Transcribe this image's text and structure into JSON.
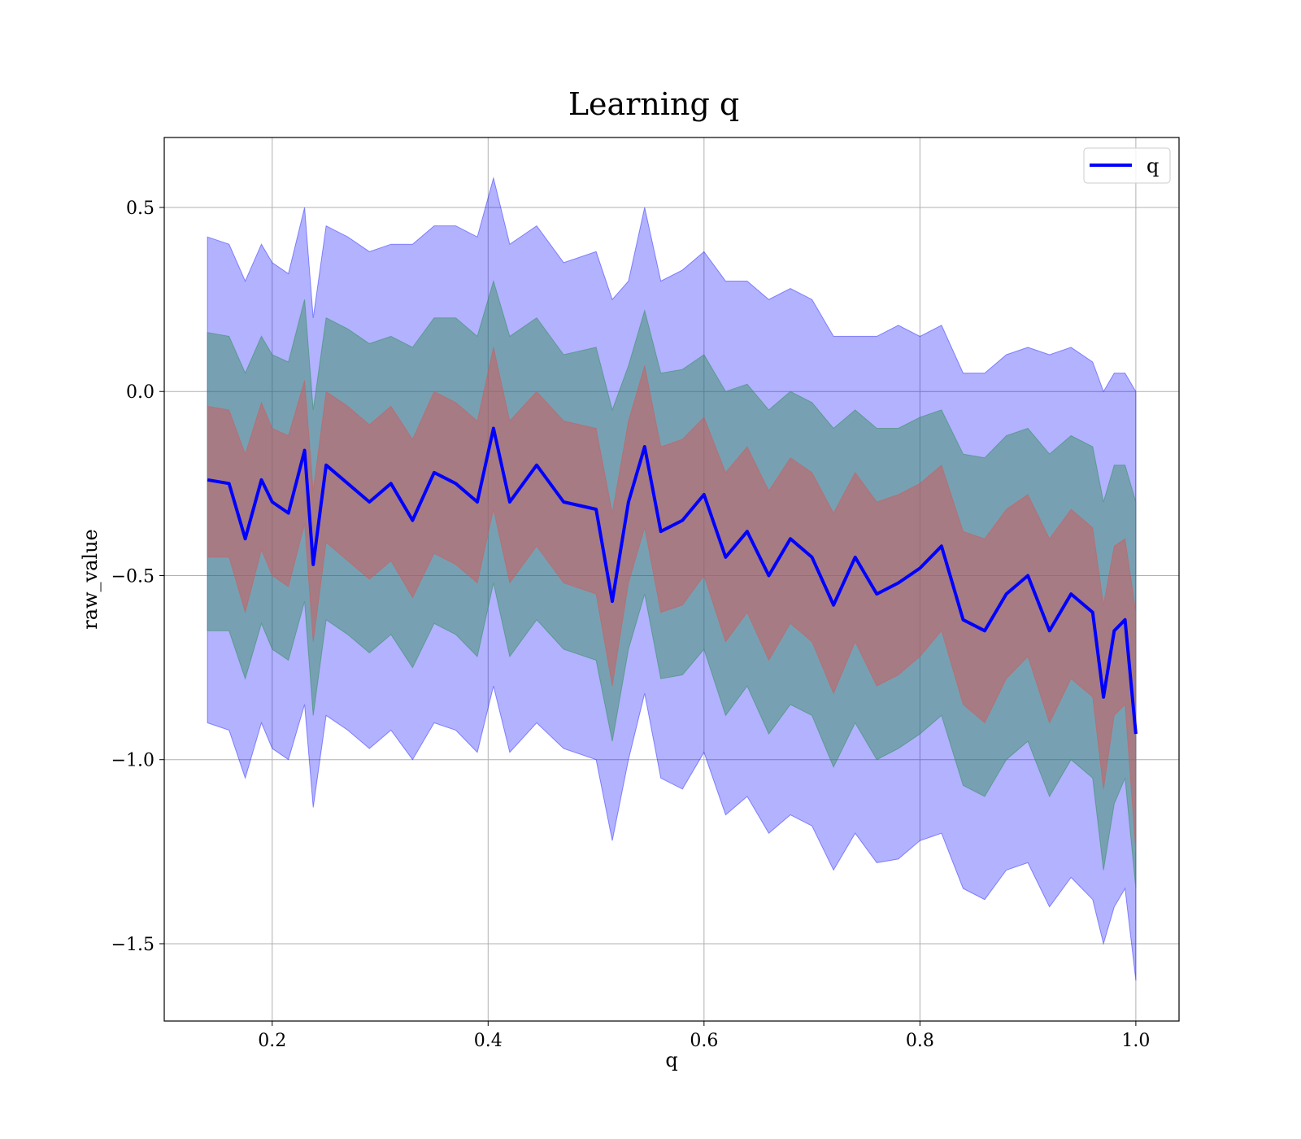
{
  "chart_data": {
    "type": "line",
    "title": "Learning q",
    "xlabel": "q",
    "ylabel": "raw_value",
    "xlim": [
      0.1,
      1.04
    ],
    "ylim": [
      -1.71,
      0.69
    ],
    "xticks": [
      0.2,
      0.4,
      0.6,
      0.8,
      1.0
    ],
    "xtick_labels": [
      "0.2",
      "0.4",
      "0.6",
      "0.8",
      "1.0"
    ],
    "yticks": [
      0.5,
      0.0,
      -0.5,
      -1.0,
      -1.5
    ],
    "ytick_labels": [
      "0.5",
      "0.0",
      "−0.5",
      "−1.0",
      "−1.5"
    ],
    "grid": true,
    "legend": {
      "position": "top-right",
      "entries": [
        "q"
      ]
    },
    "colors": {
      "mean_line": "#0000ff",
      "band_outer": "#0000ff",
      "band_middle": "#2e8b57",
      "band_inner": "#cd5c5c"
    },
    "series": [
      {
        "name": "q",
        "x": [
          0.14,
          0.16,
          0.175,
          0.19,
          0.2,
          0.215,
          0.23,
          0.238,
          0.25,
          0.27,
          0.29,
          0.31,
          0.33,
          0.35,
          0.37,
          0.39,
          0.405,
          0.42,
          0.445,
          0.47,
          0.5,
          0.515,
          0.53,
          0.545,
          0.56,
          0.58,
          0.6,
          0.62,
          0.64,
          0.66,
          0.68,
          0.7,
          0.72,
          0.74,
          0.76,
          0.78,
          0.8,
          0.82,
          0.84,
          0.86,
          0.88,
          0.9,
          0.92,
          0.94,
          0.96,
          0.97,
          0.98,
          0.99,
          1.0
        ],
        "values": [
          -0.24,
          -0.25,
          -0.4,
          -0.24,
          -0.3,
          -0.33,
          -0.16,
          -0.47,
          -0.2,
          -0.25,
          -0.3,
          -0.25,
          -0.35,
          -0.22,
          -0.25,
          -0.3,
          -0.1,
          -0.3,
          -0.2,
          -0.3,
          -0.32,
          -0.57,
          -0.3,
          -0.15,
          -0.38,
          -0.35,
          -0.28,
          -0.45,
          -0.38,
          -0.5,
          -0.4,
          -0.45,
          -0.58,
          -0.45,
          -0.55,
          -0.52,
          -0.48,
          -0.42,
          -0.62,
          -0.65,
          -0.55,
          -0.5,
          -0.65,
          -0.55,
          -0.6,
          -0.83,
          -0.65,
          -0.62,
          -0.93
        ],
        "band_outer_upper": [
          0.42,
          0.4,
          0.3,
          0.4,
          0.35,
          0.32,
          0.5,
          0.2,
          0.45,
          0.42,
          0.38,
          0.4,
          0.4,
          0.45,
          0.45,
          0.42,
          0.58,
          0.4,
          0.45,
          0.35,
          0.38,
          0.25,
          0.3,
          0.5,
          0.3,
          0.33,
          0.38,
          0.3,
          0.3,
          0.25,
          0.28,
          0.25,
          0.15,
          0.15,
          0.15,
          0.18,
          0.15,
          0.18,
          0.05,
          0.05,
          0.1,
          0.12,
          0.1,
          0.12,
          0.08,
          0.0,
          0.05,
          0.05,
          0.0
        ],
        "band_outer_lower": [
          -0.9,
          -0.92,
          -1.05,
          -0.9,
          -0.97,
          -1.0,
          -0.85,
          -1.13,
          -0.88,
          -0.92,
          -0.97,
          -0.92,
          -1.0,
          -0.9,
          -0.92,
          -0.98,
          -0.8,
          -0.98,
          -0.9,
          -0.97,
          -1.0,
          -1.22,
          -1.0,
          -0.82,
          -1.05,
          -1.08,
          -0.98,
          -1.15,
          -1.1,
          -1.2,
          -1.15,
          -1.18,
          -1.3,
          -1.2,
          -1.28,
          -1.27,
          -1.22,
          -1.2,
          -1.35,
          -1.38,
          -1.3,
          -1.28,
          -1.4,
          -1.32,
          -1.38,
          -1.5,
          -1.4,
          -1.35,
          -1.6
        ],
        "band_middle_upper": [
          0.16,
          0.15,
          0.05,
          0.15,
          0.1,
          0.08,
          0.25,
          -0.05,
          0.2,
          0.17,
          0.13,
          0.15,
          0.12,
          0.2,
          0.2,
          0.15,
          0.3,
          0.15,
          0.2,
          0.1,
          0.12,
          -0.05,
          0.07,
          0.22,
          0.05,
          0.06,
          0.1,
          0.0,
          0.02,
          -0.05,
          0.0,
          -0.03,
          -0.1,
          -0.05,
          -0.1,
          -0.1,
          -0.07,
          -0.05,
          -0.17,
          -0.18,
          -0.12,
          -0.1,
          -0.17,
          -0.12,
          -0.15,
          -0.3,
          -0.2,
          -0.2,
          -0.3
        ],
        "band_middle_lower": [
          -0.65,
          -0.65,
          -0.78,
          -0.63,
          -0.7,
          -0.73,
          -0.57,
          -0.88,
          -0.62,
          -0.66,
          -0.71,
          -0.66,
          -0.75,
          -0.63,
          -0.66,
          -0.72,
          -0.52,
          -0.72,
          -0.62,
          -0.7,
          -0.73,
          -0.95,
          -0.7,
          -0.55,
          -0.78,
          -0.77,
          -0.7,
          -0.88,
          -0.8,
          -0.93,
          -0.85,
          -0.88,
          -1.02,
          -0.9,
          -1.0,
          -0.97,
          -0.93,
          -0.88,
          -1.07,
          -1.1,
          -1.0,
          -0.95,
          -1.1,
          -1.0,
          -1.05,
          -1.3,
          -1.12,
          -1.05,
          -1.35
        ],
        "band_inner_upper": [
          -0.04,
          -0.05,
          -0.17,
          -0.03,
          -0.1,
          -0.12,
          0.03,
          -0.27,
          0.0,
          -0.04,
          -0.09,
          -0.04,
          -0.13,
          0.0,
          -0.03,
          -0.08,
          0.12,
          -0.08,
          0.0,
          -0.08,
          -0.1,
          -0.33,
          -0.08,
          0.07,
          -0.15,
          -0.13,
          -0.07,
          -0.22,
          -0.15,
          -0.27,
          -0.18,
          -0.22,
          -0.33,
          -0.22,
          -0.3,
          -0.28,
          -0.25,
          -0.2,
          -0.38,
          -0.4,
          -0.32,
          -0.28,
          -0.4,
          -0.32,
          -0.37,
          -0.58,
          -0.42,
          -0.4,
          -0.6
        ],
        "band_inner_lower": [
          -0.45,
          -0.45,
          -0.6,
          -0.43,
          -0.5,
          -0.53,
          -0.36,
          -0.68,
          -0.41,
          -0.46,
          -0.51,
          -0.46,
          -0.56,
          -0.44,
          -0.47,
          -0.52,
          -0.32,
          -0.52,
          -0.42,
          -0.52,
          -0.55,
          -0.8,
          -0.52,
          -0.37,
          -0.6,
          -0.58,
          -0.5,
          -0.68,
          -0.6,
          -0.73,
          -0.63,
          -0.68,
          -0.82,
          -0.68,
          -0.8,
          -0.77,
          -0.72,
          -0.65,
          -0.85,
          -0.9,
          -0.78,
          -0.72,
          -0.9,
          -0.78,
          -0.83,
          -1.08,
          -0.88,
          -0.85,
          -1.25
        ]
      }
    ]
  }
}
